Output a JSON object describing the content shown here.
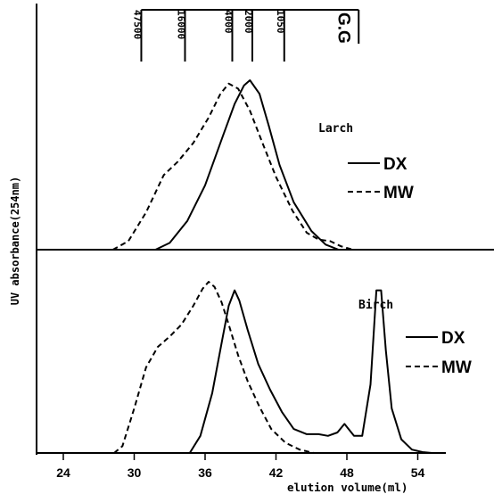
{
  "chart_data": {
    "type": "line",
    "xlabel": "elution volume(ml)",
    "ylabel": "UV absorbance(254nm)",
    "x_ticks": [
      24,
      30,
      36,
      42,
      48,
      54
    ],
    "xlim": [
      22,
      58
    ],
    "calibration": {
      "label": "G.G",
      "markers": [
        {
          "label": "47500",
          "x": 30.6
        },
        {
          "label": "16000",
          "x": 34.3
        },
        {
          "label": "4000",
          "x": 38.3
        },
        {
          "label": "2000",
          "x": 40.0
        },
        {
          "label": "1050",
          "x": 42.7
        }
      ],
      "end_x": 49.0
    },
    "panels": [
      {
        "name": "Larch",
        "legend": [
          "DX",
          "MW"
        ],
        "series": [
          {
            "name": "DX",
            "style": "solid",
            "x": [
              31.8,
              33.0,
              34.5,
              36.0,
              37.5,
              38.5,
              39.3,
              39.8,
              40.6,
              41.4,
              42.3,
              43.5,
              45.0,
              46.2,
              47.3
            ],
            "y": [
              0.0,
              0.04,
              0.17,
              0.38,
              0.67,
              0.86,
              0.97,
              1.0,
              0.92,
              0.73,
              0.5,
              0.28,
              0.11,
              0.03,
              0.0
            ]
          },
          {
            "name": "MW",
            "style": "dashed",
            "x": [
              28.2,
              29.5,
              31.0,
              32.5,
              33.7,
              35.0,
              36.3,
              37.3,
              38.0,
              38.8,
              39.8,
              40.8,
              42.0,
              43.4,
              44.6,
              45.6,
              46.6,
              47.5,
              48.5
            ],
            "y": [
              0.0,
              0.05,
              0.22,
              0.44,
              0.52,
              0.63,
              0.78,
              0.92,
              0.98,
              0.95,
              0.82,
              0.64,
              0.43,
              0.23,
              0.1,
              0.06,
              0.05,
              0.02,
              0.0
            ]
          }
        ]
      },
      {
        "name": "Birch",
        "legend": [
          "DX",
          "MW"
        ],
        "series": [
          {
            "name": "DX",
            "style": "solid",
            "x": [
              34.7,
              35.6,
              36.6,
              37.5,
              38.0,
              38.5,
              38.9,
              39.6,
              40.5,
              41.5,
              42.5,
              43.5,
              44.6,
              45.6,
              46.4,
              47.2,
              47.8,
              48.6,
              49.3,
              50.0,
              50.5,
              50.9,
              51.3,
              51.8,
              52.6,
              53.5,
              54.4,
              55.2
            ],
            "y": [
              0.0,
              0.1,
              0.35,
              0.68,
              0.86,
              0.95,
              0.89,
              0.72,
              0.52,
              0.37,
              0.24,
              0.14,
              0.11,
              0.11,
              0.1,
              0.12,
              0.17,
              0.1,
              0.1,
              0.4,
              0.95,
              0.95,
              0.6,
              0.26,
              0.08,
              0.02,
              0.005,
              0.0
            ]
          },
          {
            "name": "MW",
            "style": "dashed",
            "x": [
              28.3,
              29.0,
              30.0,
              31.0,
              32.0,
              33.0,
              34.0,
              35.0,
              35.8,
              36.3,
              36.8,
              37.4,
              38.0,
              38.8,
              39.6,
              40.6,
              41.6,
              42.8,
              44.0,
              45.2
            ],
            "y": [
              0.0,
              0.04,
              0.26,
              0.5,
              0.62,
              0.68,
              0.75,
              0.86,
              0.96,
              1.0,
              0.97,
              0.88,
              0.75,
              0.57,
              0.42,
              0.27,
              0.14,
              0.06,
              0.02,
              0.0
            ]
          }
        ]
      }
    ]
  }
}
